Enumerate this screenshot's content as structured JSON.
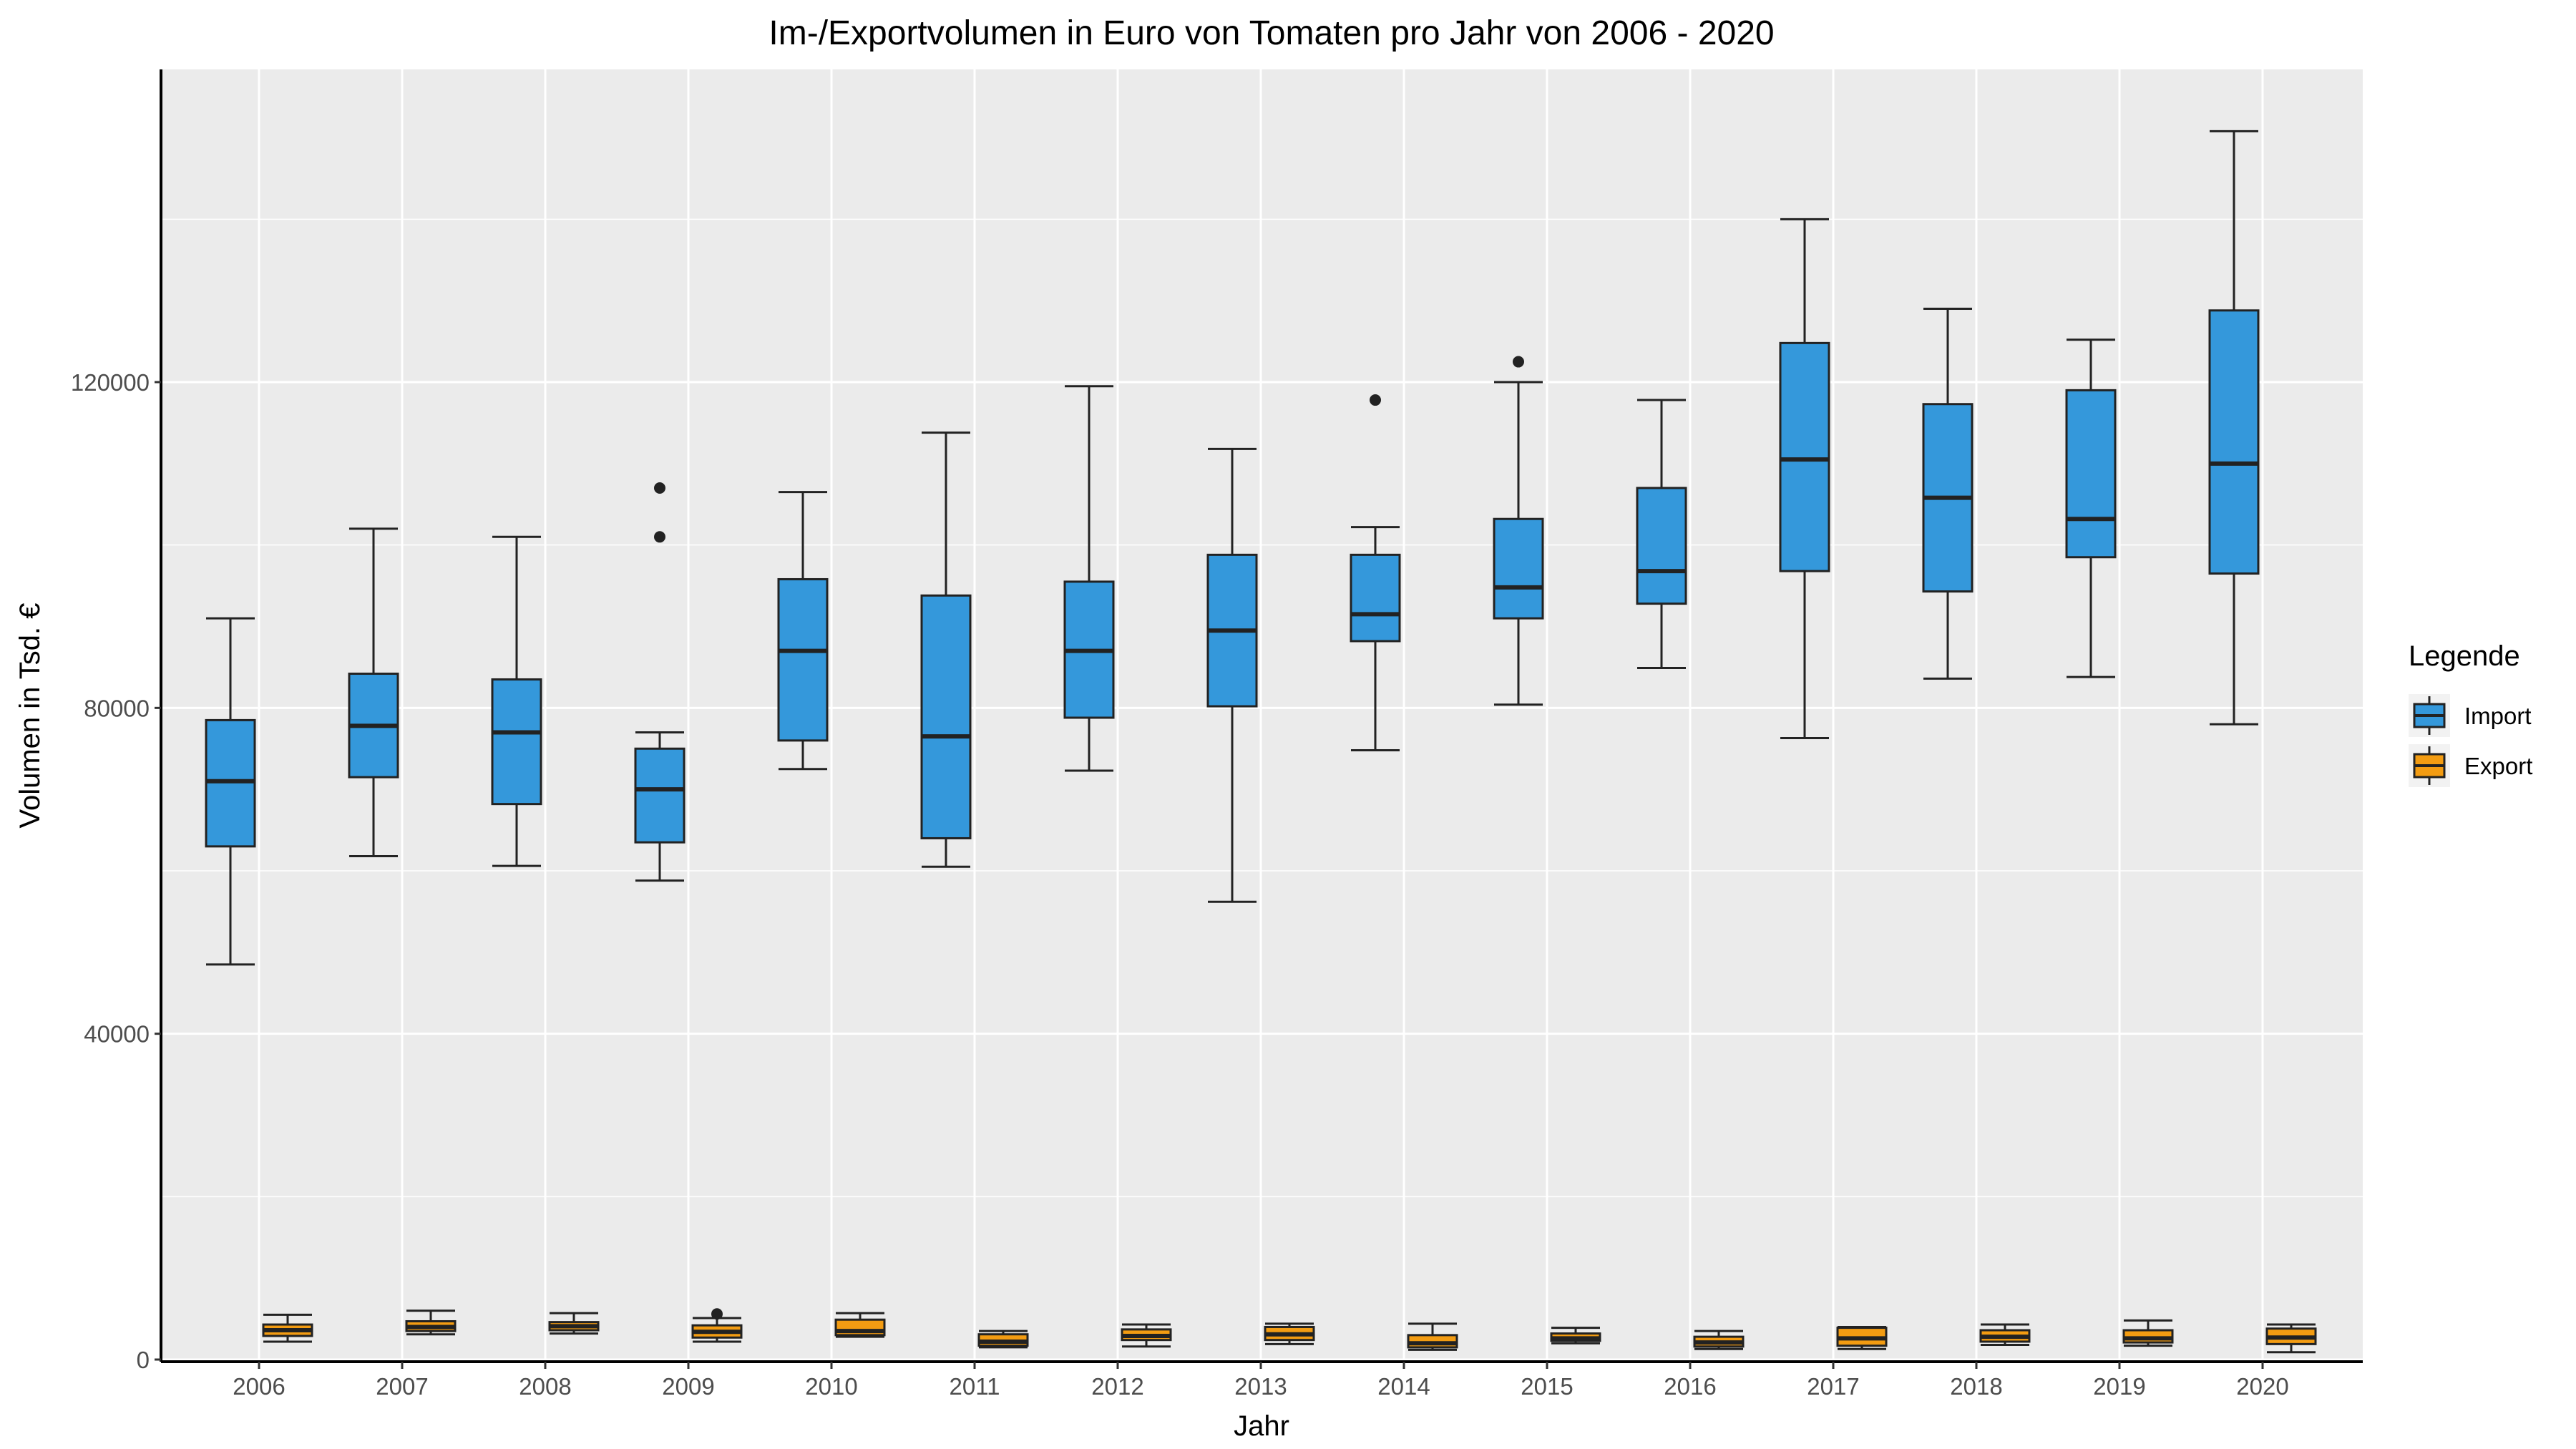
{
  "chart_data": {
    "type": "boxplot",
    "title": "Im-/Exportvolumen in Euro von Tomaten pro Jahr von 2006 - 2020",
    "xlabel": "Jahr",
    "ylabel": "Volumen in Tsd. €",
    "ylim": [
      0,
      153000
    ],
    "yticks": [
      0,
      40000,
      80000,
      120000
    ],
    "grid": true,
    "legend": {
      "title": "Legende",
      "position": "right"
    },
    "categories": [
      "2006",
      "2007",
      "2008",
      "2009",
      "2010",
      "2011",
      "2012",
      "2013",
      "2014",
      "2015",
      "2016",
      "2017",
      "2018",
      "2019",
      "2020"
    ],
    "series": [
      {
        "name": "Import",
        "color": "#3498db",
        "boxes": [
          {
            "min": 48500,
            "q1": 63000,
            "median": 71000,
            "q3": 78500,
            "max": 91000,
            "outliers": []
          },
          {
            "min": 61800,
            "q1": 71500,
            "median": 77800,
            "q3": 84200,
            "max": 102000,
            "outliers": []
          },
          {
            "min": 60600,
            "q1": 68200,
            "median": 77000,
            "q3": 83500,
            "max": 101000,
            "outliers": []
          },
          {
            "min": 58800,
            "q1": 63500,
            "median": 70000,
            "q3": 75000,
            "max": 77000,
            "outliers": [
              107000,
              101000
            ]
          },
          {
            "min": 72500,
            "q1": 76000,
            "median": 87000,
            "q3": 95800,
            "max": 106500,
            "outliers": []
          },
          {
            "min": 60500,
            "q1": 64000,
            "median": 76500,
            "q3": 93800,
            "max": 113800,
            "outliers": []
          },
          {
            "min": 72300,
            "q1": 78800,
            "median": 87000,
            "q3": 95500,
            "max": 119500,
            "outliers": []
          },
          {
            "min": 56200,
            "q1": 80200,
            "median": 89500,
            "q3": 98800,
            "max": 111800,
            "outliers": []
          },
          {
            "min": 74800,
            "q1": 88200,
            "median": 91500,
            "q3": 98800,
            "max": 102200,
            "outliers": [
              117800
            ]
          },
          {
            "min": 80400,
            "q1": 91000,
            "median": 94800,
            "q3": 103200,
            "max": 120000,
            "outliers": [
              122500
            ]
          },
          {
            "min": 84900,
            "q1": 92800,
            "median": 96800,
            "q3": 107000,
            "max": 117800,
            "outliers": []
          },
          {
            "min": 76300,
            "q1": 96800,
            "median": 110500,
            "q3": 124800,
            "max": 140000,
            "outliers": []
          },
          {
            "min": 83600,
            "q1": 94300,
            "median": 105800,
            "q3": 117300,
            "max": 129000,
            "outliers": []
          },
          {
            "min": 83800,
            "q1": 98500,
            "median": 103200,
            "q3": 119000,
            "max": 125200,
            "outliers": []
          },
          {
            "min": 78000,
            "q1": 96500,
            "median": 110000,
            "q3": 128800,
            "max": 150800,
            "outliers": []
          }
        ]
      },
      {
        "name": "Export",
        "color": "#f39c12",
        "boxes": [
          {
            "min": 2200,
            "q1": 2900,
            "median": 3600,
            "q3": 4300,
            "max": 5500,
            "outliers": []
          },
          {
            "min": 3100,
            "q1": 3500,
            "median": 4000,
            "q3": 4700,
            "max": 6000,
            "outliers": []
          },
          {
            "min": 3200,
            "q1": 3600,
            "median": 4100,
            "q3": 4600,
            "max": 5700,
            "outliers": []
          },
          {
            "min": 2200,
            "q1": 2700,
            "median": 3400,
            "q3": 4200,
            "max": 5100,
            "outliers": [
              5600
            ]
          },
          {
            "min": 2800,
            "q1": 3000,
            "median": 3500,
            "q3": 4900,
            "max": 5700,
            "outliers": []
          },
          {
            "min": 1500,
            "q1": 1700,
            "median": 2200,
            "q3": 3100,
            "max": 3500,
            "outliers": []
          },
          {
            "min": 1600,
            "q1": 2400,
            "median": 2900,
            "q3": 3700,
            "max": 4300,
            "outliers": []
          },
          {
            "min": 1900,
            "q1": 2400,
            "median": 3100,
            "q3": 4000,
            "max": 4400,
            "outliers": []
          },
          {
            "min": 1200,
            "q1": 1500,
            "median": 2000,
            "q3": 3000,
            "max": 4400,
            "outliers": []
          },
          {
            "min": 2000,
            "q1": 2300,
            "median": 2600,
            "q3": 3200,
            "max": 3900,
            "outliers": []
          },
          {
            "min": 1300,
            "q1": 1600,
            "median": 2100,
            "q3": 2800,
            "max": 3500,
            "outliers": []
          },
          {
            "min": 1300,
            "q1": 1700,
            "median": 2600,
            "q3": 3900,
            "max": 4000,
            "outliers": []
          },
          {
            "min": 1800,
            "q1": 2200,
            "median": 2800,
            "q3": 3600,
            "max": 4300,
            "outliers": []
          },
          {
            "min": 1700,
            "q1": 2100,
            "median": 2600,
            "q3": 3600,
            "max": 4800,
            "outliers": []
          },
          {
            "min": 900,
            "q1": 1900,
            "median": 2700,
            "q3": 3800,
            "max": 4300,
            "outliers": []
          }
        ]
      }
    ]
  }
}
